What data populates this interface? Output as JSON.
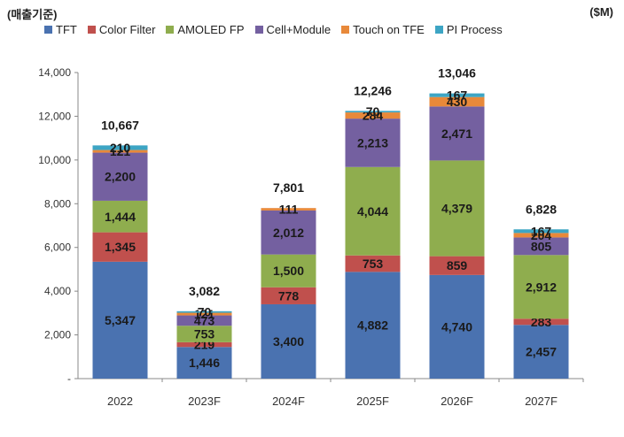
{
  "chart_data": {
    "type": "bar",
    "stacked": true,
    "title": "",
    "unit_label": "($M)",
    "basis_label": "(매출기준)",
    "xlabel": "",
    "ylabel": "",
    "ylim": [
      0,
      14000
    ],
    "y_ticks": [
      "-",
      "2,000",
      "4,000",
      "6,000",
      "8,000",
      "10,000",
      "12,000",
      "14,000"
    ],
    "y_tick_values": [
      0,
      2000,
      4000,
      6000,
      8000,
      10000,
      12000,
      14000
    ],
    "grid": false,
    "legend_position": "top",
    "categories": [
      "2022",
      "2023F",
      "2024F",
      "2025F",
      "2026F",
      "2027F"
    ],
    "series": [
      {
        "name": "TFT",
        "color": "#4a72b0",
        "values": [
          5347,
          1446,
          3400,
          4882,
          4740,
          2457
        ],
        "labels": [
          "5,347",
          "1,446",
          "3,400",
          "4,882",
          "4,740",
          "2,457"
        ]
      },
      {
        "name": "Color Filter",
        "color": "#c0504d",
        "values": [
          1345,
          219,
          778,
          753,
          859,
          283
        ],
        "labels": [
          "1,345",
          "219",
          "778",
          "753",
          "859",
          "283"
        ]
      },
      {
        "name": "AMOLED FP",
        "color": "#8fad4e",
        "values": [
          1444,
          753,
          1500,
          4044,
          4379,
          2912
        ],
        "labels": [
          "1,444",
          "753",
          "1,500",
          "4,044",
          "4,379",
          "2,912"
        ]
      },
      {
        "name": "Cell+Module",
        "color": "#7460a0",
        "values": [
          2200,
          473,
          2012,
          2213,
          2471,
          805
        ],
        "labels": [
          "2,200",
          "473",
          "2,012",
          "2,213",
          "2,471",
          "805"
        ]
      },
      {
        "name": "Touch on TFE",
        "color": "#e8893a",
        "values": [
          121,
          121,
          111,
          284,
          430,
          204
        ],
        "labels": [
          "121",
          "121",
          "111",
          "284",
          "430",
          "204"
        ]
      },
      {
        "name": "PI Process",
        "color": "#3da5c4",
        "values": [
          210,
          70,
          0,
          70,
          167,
          167
        ],
        "labels": [
          "210",
          "70",
          "",
          "70",
          "167",
          "167"
        ]
      }
    ],
    "totals": [
      10667,
      3082,
      7801,
      12246,
      13046,
      6828
    ],
    "total_labels": [
      "10,667",
      "3,082",
      "7,801",
      "12,246",
      "13,046",
      "6,828"
    ]
  }
}
